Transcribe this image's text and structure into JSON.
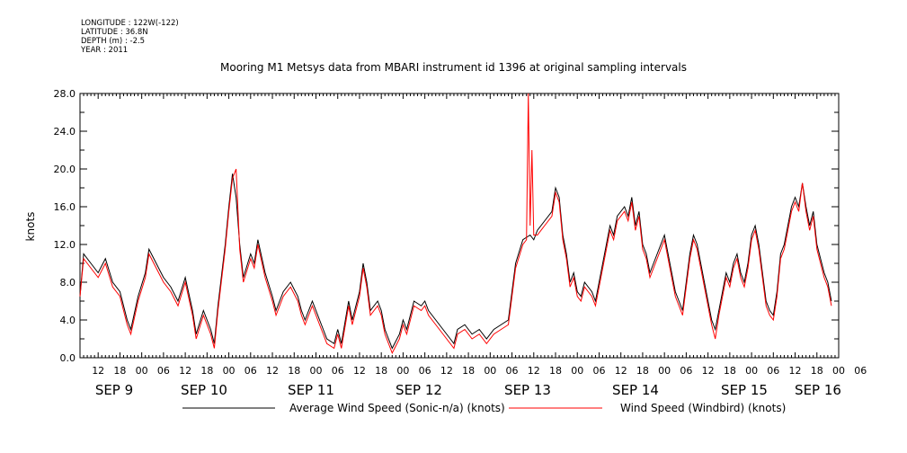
{
  "meta": {
    "longitude": "LONGITUDE : 122W(-122)",
    "latitude": "LATITUDE : 36.8N",
    "depth": "DEPTH (m) : -2.5",
    "year": "YEAR : 2011"
  },
  "chart_data": {
    "type": "line",
    "title": "Mooring M1 Metsys data from MBARI instrument id 1396 at original sampling intervals",
    "ylabel": "knots",
    "xlabel": "",
    "ylim": [
      0,
      28
    ],
    "yticks": [
      "0.0",
      "4.0",
      "8.0",
      "12.0",
      "16.0",
      "20.0",
      "24.0",
      "28.0"
    ],
    "xlim_hours": [
      0,
      201
    ],
    "hour_tick_labels": [
      "12",
      "18",
      "00",
      "06",
      "12",
      "18",
      "00",
      "06",
      "12",
      "18",
      "00",
      "06",
      "12",
      "18",
      "00",
      "06",
      "12",
      "18",
      "00",
      "06",
      "12",
      "18",
      "00",
      "06",
      "12",
      "18",
      "00",
      "06",
      "12",
      "18",
      "00",
      "06",
      "12",
      "18",
      "00",
      "06"
    ],
    "day_labels": [
      "SEP  9",
      "SEP 10",
      "SEP 11",
      "SEP 12",
      "SEP 13",
      "SEP 14",
      "SEP 15",
      "SEP 16"
    ],
    "legend_position": "bottom",
    "grid": false,
    "series": [
      {
        "name": "Average Wind Speed (Sonic-n/a) (knots)",
        "color": "#000000",
        "points": [
          [
            0,
            6.5
          ],
          [
            1,
            11
          ],
          [
            3,
            10
          ],
          [
            5,
            9
          ],
          [
            7,
            10.5
          ],
          [
            9,
            8
          ],
          [
            11,
            7
          ],
          [
            13,
            4
          ],
          [
            14,
            3
          ],
          [
            16,
            6.5
          ],
          [
            18,
            9
          ],
          [
            19,
            11.5
          ],
          [
            21,
            10
          ],
          [
            23,
            8.5
          ],
          [
            25,
            7.5
          ],
          [
            27,
            6
          ],
          [
            29,
            8.5
          ],
          [
            31,
            5
          ],
          [
            32,
            2.5
          ],
          [
            34,
            5
          ],
          [
            36,
            3
          ],
          [
            37,
            1.5
          ],
          [
            38,
            5.5
          ],
          [
            40,
            12
          ],
          [
            41,
            16
          ],
          [
            42,
            19.5
          ],
          [
            43,
            17
          ],
          [
            44,
            12
          ],
          [
            45,
            8.5
          ],
          [
            47,
            11
          ],
          [
            48,
            10
          ],
          [
            49,
            12.5
          ],
          [
            51,
            9
          ],
          [
            53,
            6.5
          ],
          [
            54,
            5
          ],
          [
            56,
            7
          ],
          [
            58,
            8
          ],
          [
            60,
            6.5
          ],
          [
            61,
            5
          ],
          [
            62,
            4
          ],
          [
            64,
            6
          ],
          [
            66,
            4
          ],
          [
            67,
            3
          ],
          [
            68,
            2
          ],
          [
            70,
            1.5
          ],
          [
            71,
            3
          ],
          [
            72,
            1.5
          ],
          [
            74,
            6
          ],
          [
            75,
            4
          ],
          [
            77,
            7
          ],
          [
            78,
            10
          ],
          [
            79,
            8
          ],
          [
            80,
            5
          ],
          [
            82,
            6
          ],
          [
            83,
            5
          ],
          [
            84,
            3
          ],
          [
            85,
            2
          ],
          [
            86,
            1
          ],
          [
            88,
            2.5
          ],
          [
            89,
            4
          ],
          [
            90,
            3
          ],
          [
            92,
            6
          ],
          [
            94,
            5.5
          ],
          [
            95,
            6
          ],
          [
            96,
            5
          ],
          [
            98,
            4
          ],
          [
            100,
            3
          ],
          [
            102,
            2
          ],
          [
            103,
            1.5
          ],
          [
            104,
            3
          ],
          [
            106,
            3.5
          ],
          [
            108,
            2.5
          ],
          [
            110,
            3
          ],
          [
            112,
            2
          ],
          [
            114,
            3
          ],
          [
            116,
            3.5
          ],
          [
            118,
            4
          ],
          [
            119,
            7
          ],
          [
            120,
            10
          ],
          [
            122,
            12.5
          ],
          [
            124,
            13
          ],
          [
            125,
            12.5
          ],
          [
            126,
            13.5
          ],
          [
            128,
            14.5
          ],
          [
            130,
            15.5
          ],
          [
            131,
            18
          ],
          [
            132,
            17
          ],
          [
            133,
            13
          ],
          [
            134,
            11
          ],
          [
            135,
            8
          ],
          [
            136,
            9
          ],
          [
            137,
            7
          ],
          [
            138,
            6.5
          ],
          [
            139,
            8
          ],
          [
            140,
            7.5
          ],
          [
            141,
            7
          ],
          [
            142,
            6
          ],
          [
            144,
            10
          ],
          [
            145,
            12
          ],
          [
            146,
            14
          ],
          [
            147,
            13
          ],
          [
            148,
            15
          ],
          [
            150,
            16
          ],
          [
            151,
            15
          ],
          [
            152,
            17
          ],
          [
            153,
            14
          ],
          [
            154,
            15.5
          ],
          [
            155,
            12
          ],
          [
            156,
            11
          ],
          [
            157,
            9
          ],
          [
            158,
            10
          ],
          [
            160,
            12
          ],
          [
            161,
            13
          ],
          [
            162,
            11
          ],
          [
            163,
            9
          ],
          [
            164,
            7
          ],
          [
            165,
            6
          ],
          [
            166,
            5
          ],
          [
            167,
            8
          ],
          [
            168,
            11
          ],
          [
            169,
            13
          ],
          [
            170,
            12
          ],
          [
            171,
            10
          ],
          [
            172,
            8
          ],
          [
            173,
            6
          ],
          [
            174,
            4
          ],
          [
            175,
            3
          ],
          [
            176,
            5
          ],
          [
            177,
            7
          ],
          [
            178,
            9
          ],
          [
            179,
            8
          ],
          [
            180,
            10
          ],
          [
            181,
            11
          ],
          [
            182,
            9
          ],
          [
            183,
            8
          ],
          [
            184,
            10
          ],
          [
            185,
            13
          ],
          [
            186,
            14
          ],
          [
            187,
            12
          ],
          [
            188,
            9
          ],
          [
            189,
            6
          ],
          [
            190,
            5
          ],
          [
            191,
            4.5
          ],
          [
            192,
            7
          ],
          [
            193,
            11
          ],
          [
            194,
            12
          ],
          [
            195,
            14
          ],
          [
            196,
            16
          ],
          [
            197,
            17
          ],
          [
            198,
            16
          ],
          [
            199,
            18.5
          ],
          [
            200,
            16
          ],
          [
            201,
            14
          ],
          [
            202,
            15.5
          ],
          [
            203,
            12
          ],
          [
            204,
            10.5
          ],
          [
            205,
            9
          ],
          [
            206,
            8
          ],
          [
            207,
            6
          ]
        ]
      },
      {
        "name": "Wind Speed (Windbird) (knots)",
        "color": "#ff0000",
        "points": [
          [
            0,
            6.5
          ],
          [
            1,
            10.5
          ],
          [
            3,
            9.5
          ],
          [
            5,
            8.5
          ],
          [
            7,
            10
          ],
          [
            9,
            7.5
          ],
          [
            11,
            6.5
          ],
          [
            13,
            3.5
          ],
          [
            14,
            2.5
          ],
          [
            16,
            6
          ],
          [
            18,
            8.5
          ],
          [
            19,
            11
          ],
          [
            21,
            9.5
          ],
          [
            23,
            8
          ],
          [
            25,
            7
          ],
          [
            27,
            5.5
          ],
          [
            29,
            8
          ],
          [
            31,
            4.5
          ],
          [
            32,
            2
          ],
          [
            34,
            4.5
          ],
          [
            36,
            2.5
          ],
          [
            37,
            1
          ],
          [
            38,
            5
          ],
          [
            40,
            11.5
          ],
          [
            41,
            15.5
          ],
          [
            42,
            19
          ],
          [
            43,
            20
          ],
          [
            44,
            11.5
          ],
          [
            45,
            8
          ],
          [
            47,
            10.5
          ],
          [
            48,
            9.5
          ],
          [
            49,
            12
          ],
          [
            51,
            8.5
          ],
          [
            53,
            6
          ],
          [
            54,
            4.5
          ],
          [
            56,
            6.5
          ],
          [
            58,
            7.5
          ],
          [
            60,
            6
          ],
          [
            61,
            4.5
          ],
          [
            62,
            3.5
          ],
          [
            64,
            5.5
          ],
          [
            66,
            3.5
          ],
          [
            67,
            2.5
          ],
          [
            68,
            1.5
          ],
          [
            70,
            1
          ],
          [
            71,
            2.5
          ],
          [
            72,
            1
          ],
          [
            74,
            5.5
          ],
          [
            75,
            3.5
          ],
          [
            77,
            6.5
          ],
          [
            78,
            9.5
          ],
          [
            79,
            7.5
          ],
          [
            80,
            4.5
          ],
          [
            82,
            5.5
          ],
          [
            83,
            4.5
          ],
          [
            84,
            2.5
          ],
          [
            85,
            1.5
          ],
          [
            86,
            0.5
          ],
          [
            88,
            2
          ],
          [
            89,
            3.5
          ],
          [
            90,
            2.5
          ],
          [
            92,
            5.5
          ],
          [
            94,
            5
          ],
          [
            95,
            5.5
          ],
          [
            96,
            4.5
          ],
          [
            98,
            3.5
          ],
          [
            100,
            2.5
          ],
          [
            102,
            1.5
          ],
          [
            103,
            1
          ],
          [
            104,
            2.5
          ],
          [
            106,
            3
          ],
          [
            108,
            2
          ],
          [
            110,
            2.5
          ],
          [
            112,
            1.5
          ],
          [
            114,
            2.5
          ],
          [
            116,
            3
          ],
          [
            118,
            3.5
          ],
          [
            119,
            6.5
          ],
          [
            120,
            9.5
          ],
          [
            122,
            12
          ],
          [
            123,
            12.5
          ],
          [
            123.5,
            28
          ],
          [
            124,
            14
          ],
          [
            124.5,
            22
          ],
          [
            125,
            13
          ],
          [
            126,
            13
          ],
          [
            128,
            14
          ],
          [
            130,
            15
          ],
          [
            131,
            17.5
          ],
          [
            132,
            16.5
          ],
          [
            133,
            12.5
          ],
          [
            134,
            10.5
          ],
          [
            135,
            7.5
          ],
          [
            136,
            8.5
          ],
          [
            137,
            6.5
          ],
          [
            138,
            6
          ],
          [
            139,
            7.5
          ],
          [
            140,
            7
          ],
          [
            141,
            6.5
          ],
          [
            142,
            5.5
          ],
          [
            144,
            9.5
          ],
          [
            145,
            11.5
          ],
          [
            146,
            13.5
          ],
          [
            147,
            12.5
          ],
          [
            148,
            14.5
          ],
          [
            150,
            15.5
          ],
          [
            151,
            14.5
          ],
          [
            152,
            16.5
          ],
          [
            153,
            13.5
          ],
          [
            154,
            15
          ],
          [
            155,
            11.5
          ],
          [
            156,
            10.5
          ],
          [
            157,
            8.5
          ],
          [
            158,
            9.5
          ],
          [
            160,
            11.5
          ],
          [
            161,
            12.5
          ],
          [
            162,
            10.5
          ],
          [
            163,
            8.5
          ],
          [
            164,
            6.5
          ],
          [
            165,
            5.5
          ],
          [
            166,
            4.5
          ],
          [
            167,
            7.5
          ],
          [
            168,
            10.5
          ],
          [
            169,
            12.5
          ],
          [
            170,
            11.5
          ],
          [
            171,
            9.5
          ],
          [
            172,
            7.5
          ],
          [
            173,
            5.5
          ],
          [
            174,
            3.5
          ],
          [
            175,
            2
          ],
          [
            176,
            4.5
          ],
          [
            177,
            6.5
          ],
          [
            178,
            8.5
          ],
          [
            179,
            7.5
          ],
          [
            180,
            9.5
          ],
          [
            181,
            10.5
          ],
          [
            182,
            8.5
          ],
          [
            183,
            7.5
          ],
          [
            184,
            9.5
          ],
          [
            185,
            12.5
          ],
          [
            186,
            13.5
          ],
          [
            187,
            11.5
          ],
          [
            188,
            8.5
          ],
          [
            189,
            5.5
          ],
          [
            190,
            4.5
          ],
          [
            191,
            4
          ],
          [
            192,
            6.5
          ],
          [
            193,
            10.5
          ],
          [
            194,
            11.5
          ],
          [
            195,
            13.5
          ],
          [
            196,
            15.5
          ],
          [
            197,
            16.5
          ],
          [
            198,
            15.5
          ],
          [
            199,
            18.5
          ],
          [
            200,
            15.5
          ],
          [
            201,
            13.5
          ],
          [
            202,
            15
          ],
          [
            203,
            11.5
          ],
          [
            204,
            10
          ],
          [
            205,
            8.5
          ],
          [
            206,
            7.5
          ],
          [
            207,
            5.5
          ]
        ]
      }
    ]
  }
}
